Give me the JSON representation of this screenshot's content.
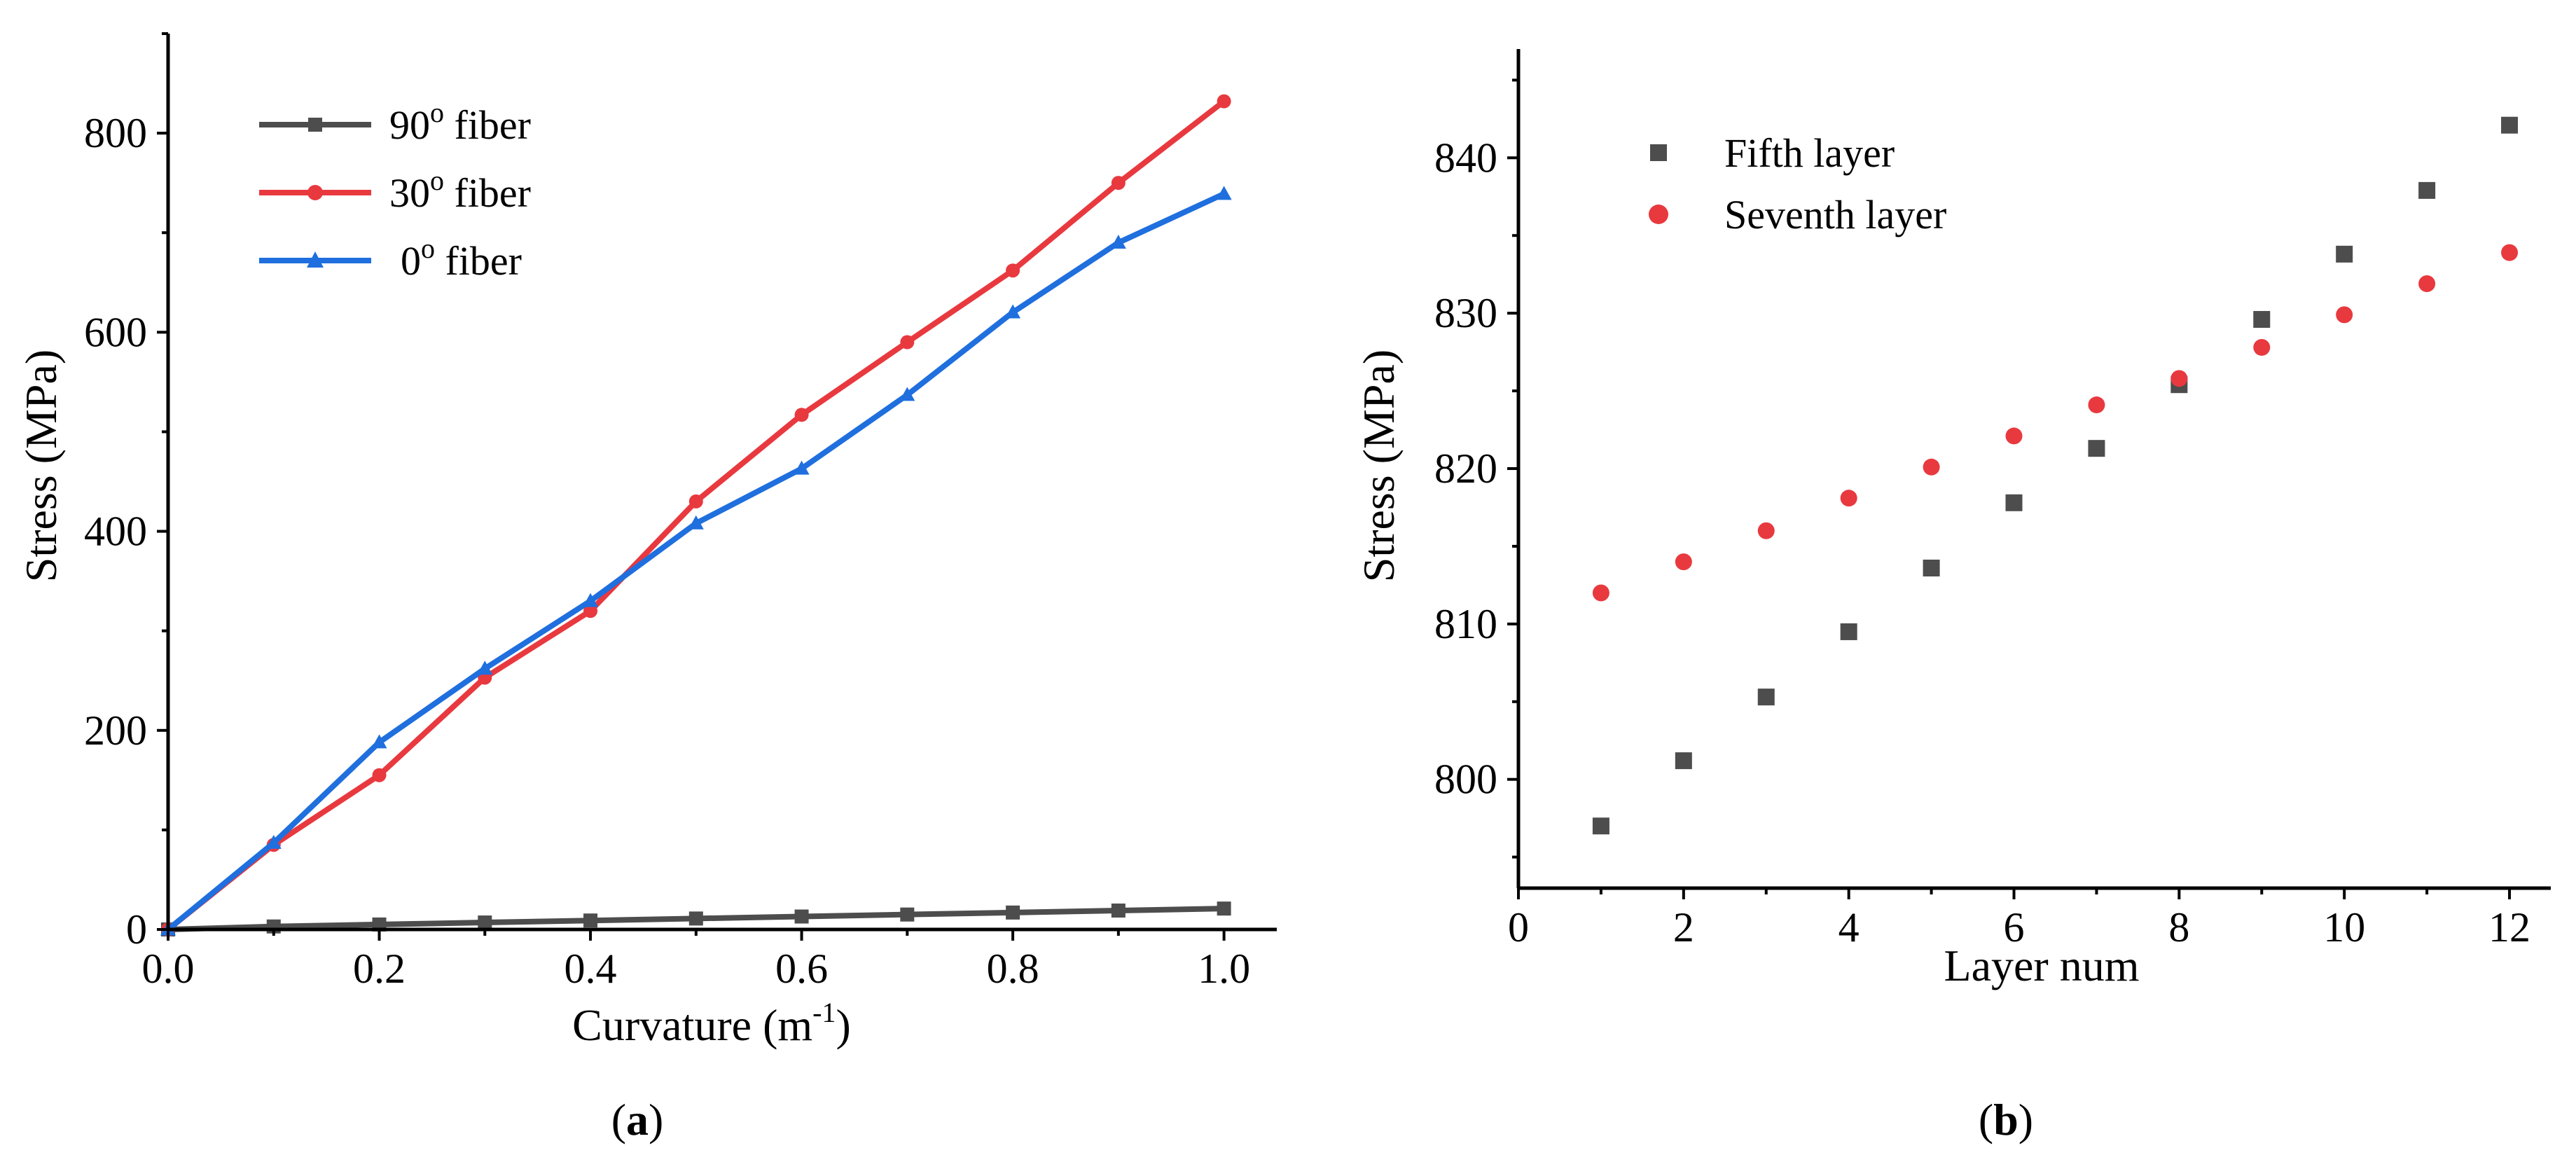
{
  "chart_data": [
    {
      "id": "a",
      "panel_label": {
        "open": "(",
        "letter": "a",
        "close": ")"
      },
      "type": "line",
      "title": "",
      "xlabel": {
        "main": "Curvature (m",
        "sup": "-1",
        "close": ")"
      },
      "ylabel": "Stress (MPa)",
      "xlim": [
        0,
        1.05
      ],
      "ylim": [
        0,
        900
      ],
      "xticks": [
        0.0,
        0.2,
        0.4,
        0.6,
        0.8,
        1.0
      ],
      "xtick_labels": [
        "0.0",
        "0.2",
        "0.4",
        "0.6",
        "0.8",
        "1.0"
      ],
      "yticks": [
        0,
        200,
        400,
        600,
        800
      ],
      "ytick_labels": [
        "0",
        "200",
        "400",
        "600",
        "800"
      ],
      "legend_position": "top-left",
      "series": [
        {
          "name": "90° fiber",
          "label": {
            "num": "90",
            "sup": "o",
            "rest": " fiber"
          },
          "color": "#4d4d4d",
          "marker": "square",
          "x": [
            0.0,
            0.1,
            0.2,
            0.3,
            0.4,
            0.5,
            0.6,
            0.7,
            0.8,
            0.9,
            1.0
          ],
          "y": [
            0,
            3,
            5,
            7,
            9,
            11,
            13,
            15,
            17,
            19,
            21
          ]
        },
        {
          "name": "30° fiber",
          "label": {
            "num": "30",
            "sup": "o",
            "rest": " fiber"
          },
          "color": "#e8393f",
          "marker": "circle",
          "x": [
            0.0,
            0.1,
            0.2,
            0.3,
            0.4,
            0.5,
            0.6,
            0.7,
            0.8,
            0.9,
            1.0
          ],
          "y": [
            0,
            85,
            155,
            253,
            320,
            430,
            517,
            590,
            662,
            750,
            832
          ]
        },
        {
          "name": "0° fiber",
          "label": {
            "num": "0",
            "sup": "o",
            "rest": " fiber"
          },
          "color": "#1f6fde",
          "marker": "triangle",
          "x": [
            0.0,
            0.1,
            0.2,
            0.3,
            0.4,
            0.5,
            0.6,
            0.7,
            0.8,
            0.9,
            1.0
          ],
          "y": [
            0,
            87,
            188,
            262,
            330,
            408,
            463,
            537,
            620,
            690,
            739
          ]
        }
      ]
    },
    {
      "id": "b",
      "panel_label": {
        "open": "(",
        "letter": "b",
        "close": ")"
      },
      "type": "scatter",
      "title": "",
      "xlabel": "Layer num",
      "ylabel": "Stress (MPa)",
      "xlim": [
        0,
        12.5
      ],
      "ylim": [
        793,
        847
      ],
      "xticks": [
        0,
        2,
        4,
        6,
        8,
        10,
        12
      ],
      "xtick_labels": [
        "0",
        "2",
        "4",
        "6",
        "8",
        "10",
        "12"
      ],
      "yticks": [
        800,
        810,
        820,
        830,
        840
      ],
      "ytick_labels": [
        "800",
        "810",
        "820",
        "830",
        "840"
      ],
      "legend_position": "top-left",
      "series": [
        {
          "name": "Fifth layer",
          "color": "#4d4d4d",
          "marker": "square",
          "x": [
            1,
            2,
            3,
            4,
            5,
            6,
            7,
            8,
            9,
            10,
            11,
            12
          ],
          "y": [
            797,
            801.2,
            805.3,
            809.5,
            813.6,
            817.8,
            821.3,
            825.4,
            829.6,
            833.8,
            837.9,
            842.1
          ]
        },
        {
          "name": "Seventh layer",
          "color": "#e8393f",
          "marker": "circle",
          "x": [
            1,
            2,
            3,
            4,
            5,
            6,
            7,
            8,
            9,
            10,
            11,
            12
          ],
          "y": [
            812,
            814,
            816,
            818.1,
            820.1,
            822.1,
            824.1,
            825.8,
            827.8,
            829.9,
            831.9,
            833.9
          ]
        }
      ]
    }
  ]
}
